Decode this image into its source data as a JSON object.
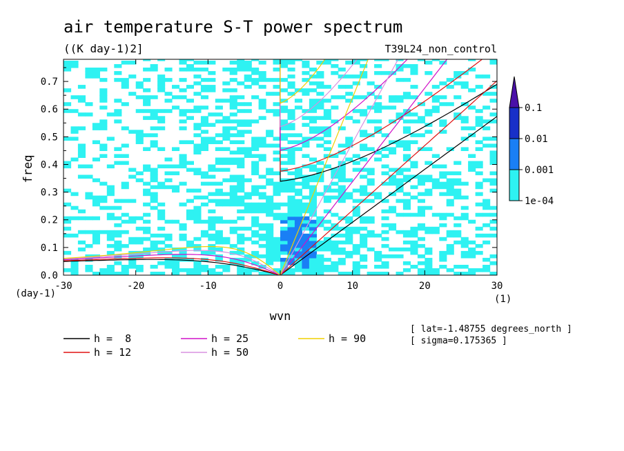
{
  "chart_data": {
    "type": "heatmap",
    "title": "air temperature S-T power spectrum",
    "subtitle": "((K day-1)2]",
    "run_label": "T39L24_non_control",
    "xlabel": "wvn",
    "ylabel": "freq",
    "x_unit": "(1)",
    "y_unit": "(day-1)",
    "xlim": [
      -30,
      30
    ],
    "ylim": [
      0,
      0.78
    ],
    "xticks": [
      -30,
      -20,
      -10,
      0,
      10,
      20,
      30
    ],
    "xtick_labels": [
      "-30",
      "-20",
      "-10",
      "0",
      "10",
      "20",
      "30"
    ],
    "yticks": [
      0,
      0.1,
      0.2,
      0.3,
      0.4,
      0.5,
      0.6,
      0.7
    ],
    "ytick_labels": [
      "0.0",
      "0.1",
      "0.2",
      "0.3",
      "0.4",
      "0.5",
      "0.6",
      "0.7"
    ],
    "colorbar": {
      "levels": [
        0.0001,
        0.001,
        0.01,
        0.1
      ],
      "labels": [
        "1e-04",
        "0.001",
        "0.01",
        "0.1"
      ],
      "colors": [
        "#2ef2f2",
        "#1a7ff5",
        "#1830c8",
        "#4a10a8"
      ]
    },
    "info": [
      "[ lat=-1.48755 degrees_north ]",
      "[ sigma=0.175365 ]"
    ],
    "dispersion_curves": [
      {
        "name": "h =  8",
        "color": "#000000"
      },
      {
        "name": "h = 12",
        "color": "#e01010"
      },
      {
        "name": "h = 25",
        "color": "#d010c8"
      },
      {
        "name": "h = 50",
        "color": "#d890e0"
      },
      {
        "name": "h = 90",
        "color": "#f0d000"
      }
    ],
    "grid": false
  }
}
